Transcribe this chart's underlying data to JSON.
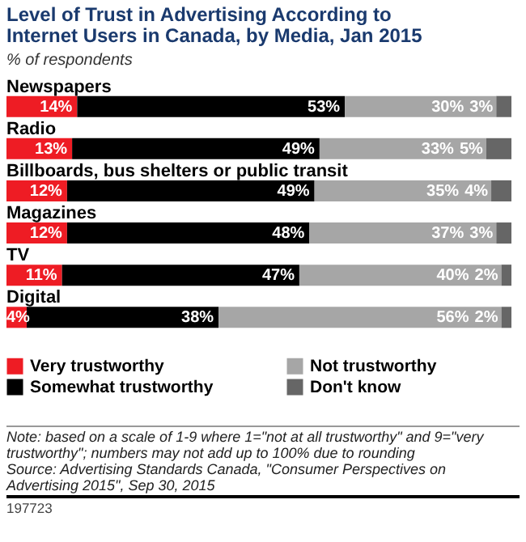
{
  "chart_data": {
    "type": "bar",
    "orientation": "horizontal",
    "stacked": true,
    "title": "Level of Trust in Advertising According to Internet Users in Canada, by Media, Jan 2015",
    "subtitle": "% of respondents",
    "categories": [
      "Newspapers",
      "Radio",
      "Billboards, bus shelters or public transit",
      "Magazines",
      "TV",
      "Digital"
    ],
    "series": [
      {
        "name": "Very trustworthy",
        "color": "#ee1c24",
        "values": [
          14,
          13,
          12,
          12,
          11,
          4
        ],
        "value_labels": [
          "14%",
          "13%",
          "12%",
          "12%",
          "11%",
          "4%"
        ]
      },
      {
        "name": "Somewhat trustworthy",
        "color": "#000000",
        "values": [
          53,
          49,
          49,
          48,
          47,
          38
        ],
        "value_labels": [
          "53%",
          "49%",
          "49%",
          "48%",
          "47%",
          "38%"
        ]
      },
      {
        "name": "Not trustworthy",
        "color": "#a6a6a6",
        "values": [
          30,
          33,
          35,
          37,
          40,
          56
        ],
        "value_labels": [
          "30%",
          "33%",
          "35%",
          "37%",
          "40%",
          "56%"
        ]
      },
      {
        "name": "Don't know",
        "color": "#666666",
        "values": [
          3,
          5,
          4,
          3,
          2,
          2
        ],
        "value_labels": [
          "3%",
          "5%",
          "4%",
          "3%",
          "2%",
          "2%"
        ]
      }
    ],
    "tick_labels": false,
    "legend": "bottom",
    "annotations": [
      "Note: based on a scale of 1-9 where 1=\"not at all trustworthy\" and 9=\"very trustworthy\"; numbers may not add up to 100% due to rounding",
      "Source: Advertising Standards Canada, \"Consumer Perspectives on Advertising 2015\", Sep 30, 2015",
      "197723"
    ]
  }
}
